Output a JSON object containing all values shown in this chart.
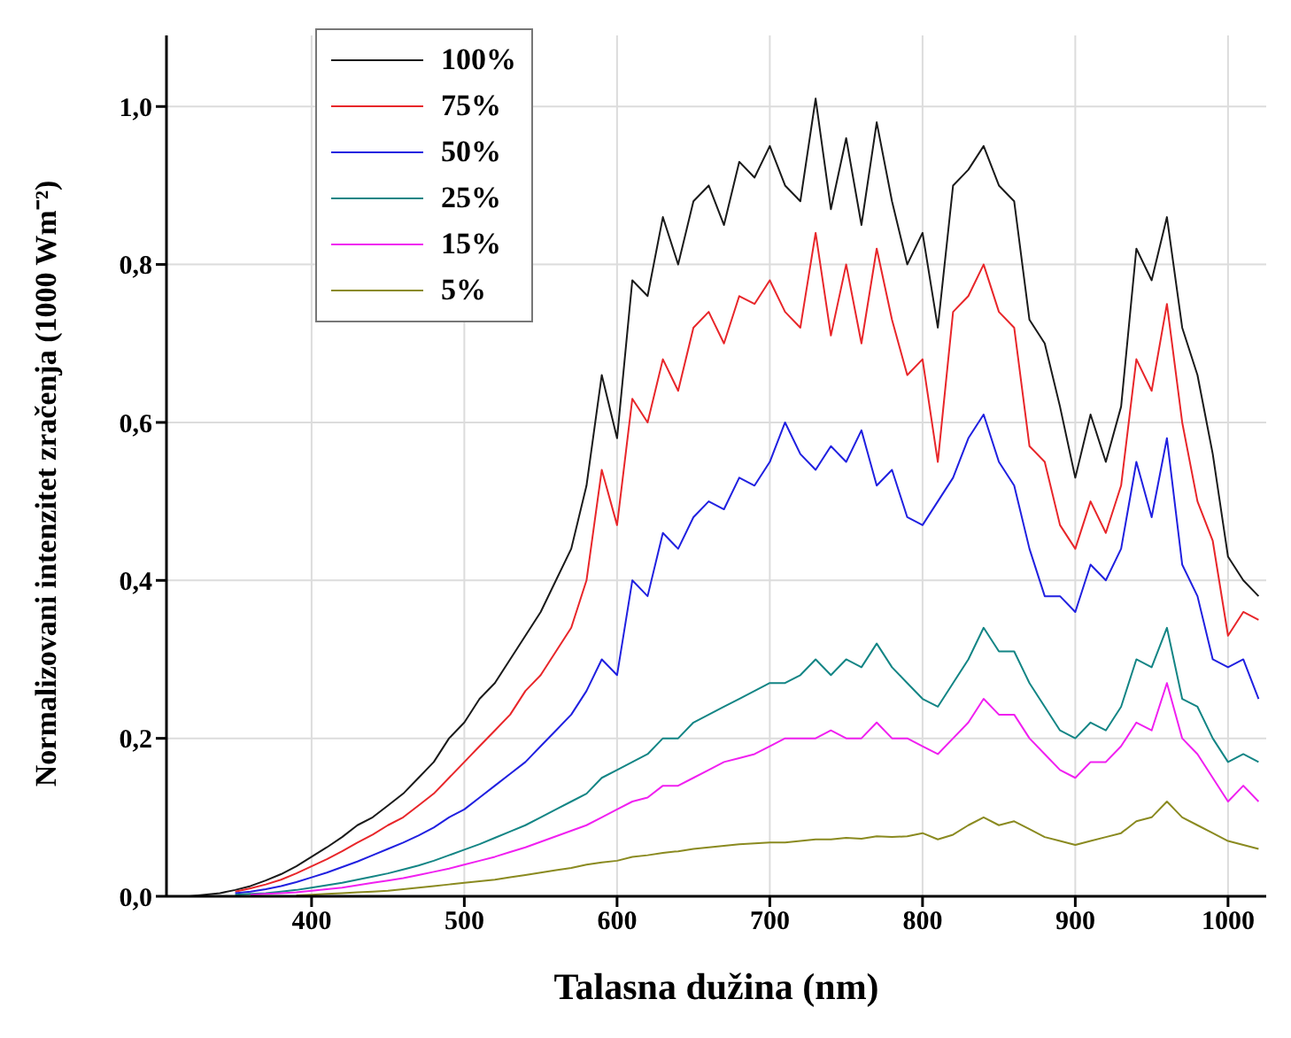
{
  "chart_data": {
    "type": "line",
    "xlabel": "Talasna dužina (nm)",
    "ylabel": "Normalizovani intenzitet zračenja (1000 Wm⁻²)",
    "x": [
      310,
      320,
      330,
      340,
      350,
      360,
      370,
      380,
      390,
      400,
      410,
      420,
      430,
      440,
      450,
      460,
      470,
      480,
      490,
      500,
      510,
      520,
      530,
      540,
      550,
      560,
      570,
      580,
      590,
      600,
      610,
      620,
      630,
      640,
      650,
      660,
      670,
      680,
      690,
      700,
      710,
      720,
      730,
      740,
      750,
      760,
      770,
      780,
      790,
      800,
      810,
      820,
      830,
      840,
      850,
      860,
      870,
      880,
      890,
      900,
      910,
      920,
      930,
      940,
      950,
      960,
      970,
      980,
      990,
      1000,
      1010,
      1020
    ],
    "series": [
      {
        "name": "100%",
        "color": "#1a1a1a",
        "values": [
          0,
          0,
          0.002,
          0.004,
          0.008,
          0.013,
          0.02,
          0.028,
          0.038,
          0.05,
          0.062,
          0.075,
          0.09,
          0.1,
          0.115,
          0.13,
          0.15,
          0.17,
          0.2,
          0.22,
          0.25,
          0.27,
          0.3,
          0.33,
          0.36,
          0.4,
          0.44,
          0.52,
          0.66,
          0.58,
          0.78,
          0.76,
          0.86,
          0.8,
          0.88,
          0.9,
          0.85,
          0.93,
          0.91,
          0.95,
          0.9,
          0.88,
          1.01,
          0.87,
          0.96,
          0.85,
          0.98,
          0.88,
          0.8,
          0.84,
          0.72,
          0.9,
          0.92,
          0.95,
          0.9,
          0.88,
          0.73,
          0.7,
          0.62,
          0.53,
          0.61,
          0.55,
          0.62,
          0.82,
          0.78,
          0.86,
          0.72,
          0.66,
          0.56,
          0.43,
          0.4,
          0.38
        ]
      },
      {
        "name": "75%",
        "color": "#e8262a",
        "values": [
          null,
          null,
          null,
          null,
          0.006,
          0.01,
          0.015,
          0.021,
          0.029,
          0.038,
          0.047,
          0.057,
          0.068,
          0.078,
          0.09,
          0.1,
          0.115,
          0.13,
          0.15,
          0.17,
          0.19,
          0.21,
          0.23,
          0.26,
          0.28,
          0.31,
          0.34,
          0.4,
          0.54,
          0.47,
          0.63,
          0.6,
          0.68,
          0.64,
          0.72,
          0.74,
          0.7,
          0.76,
          0.75,
          0.78,
          0.74,
          0.72,
          0.84,
          0.71,
          0.8,
          0.7,
          0.82,
          0.73,
          0.66,
          0.68,
          0.55,
          0.74,
          0.76,
          0.8,
          0.74,
          0.72,
          0.57,
          0.55,
          0.47,
          0.44,
          0.5,
          0.46,
          0.52,
          0.68,
          0.64,
          0.75,
          0.6,
          0.5,
          0.45,
          0.33,
          0.36,
          0.35
        ]
      },
      {
        "name": "50%",
        "color": "#2020e0",
        "values": [
          null,
          null,
          null,
          null,
          0.004,
          0.006,
          0.009,
          0.013,
          0.018,
          0.024,
          0.03,
          0.037,
          0.044,
          0.052,
          0.06,
          0.068,
          0.077,
          0.087,
          0.1,
          0.11,
          0.125,
          0.14,
          0.155,
          0.17,
          0.19,
          0.21,
          0.23,
          0.26,
          0.3,
          0.28,
          0.4,
          0.38,
          0.46,
          0.44,
          0.48,
          0.5,
          0.49,
          0.53,
          0.52,
          0.55,
          0.6,
          0.56,
          0.54,
          0.57,
          0.55,
          0.59,
          0.52,
          0.54,
          0.48,
          0.47,
          0.5,
          0.53,
          0.58,
          0.61,
          0.55,
          0.52,
          0.44,
          0.38,
          0.38,
          0.36,
          0.42,
          0.4,
          0.44,
          0.55,
          0.48,
          0.58,
          0.42,
          0.38,
          0.3,
          0.29,
          0.3,
          0.25
        ]
      },
      {
        "name": "25%",
        "color": "#138585",
        "values": [
          null,
          null,
          null,
          null,
          0.002,
          0.003,
          0.004,
          0.006,
          0.008,
          0.011,
          0.014,
          0.017,
          0.021,
          0.025,
          0.029,
          0.034,
          0.039,
          0.045,
          0.052,
          0.059,
          0.066,
          0.074,
          0.082,
          0.09,
          0.1,
          0.11,
          0.12,
          0.13,
          0.15,
          0.16,
          0.17,
          0.18,
          0.2,
          0.2,
          0.22,
          0.23,
          0.24,
          0.25,
          0.26,
          0.27,
          0.27,
          0.28,
          0.3,
          0.28,
          0.3,
          0.29,
          0.32,
          0.29,
          0.27,
          0.25,
          0.24,
          0.27,
          0.3,
          0.34,
          0.31,
          0.31,
          0.27,
          0.24,
          0.21,
          0.2,
          0.22,
          0.21,
          0.24,
          0.3,
          0.29,
          0.34,
          0.25,
          0.24,
          0.2,
          0.17,
          0.18,
          0.17
        ]
      },
      {
        "name": "15%",
        "color": "#f020f0",
        "values": [
          null,
          null,
          null,
          null,
          null,
          0.002,
          0.003,
          0.004,
          0.005,
          0.007,
          0.009,
          0.011,
          0.014,
          0.017,
          0.02,
          0.023,
          0.027,
          0.031,
          0.035,
          0.04,
          0.045,
          0.05,
          0.056,
          0.062,
          0.069,
          0.076,
          0.083,
          0.09,
          0.1,
          0.11,
          0.12,
          0.125,
          0.14,
          0.14,
          0.15,
          0.16,
          0.17,
          0.175,
          0.18,
          0.19,
          0.2,
          0.2,
          0.2,
          0.21,
          0.2,
          0.2,
          0.22,
          0.2,
          0.2,
          0.19,
          0.18,
          0.2,
          0.22,
          0.25,
          0.23,
          0.23,
          0.2,
          0.18,
          0.16,
          0.15,
          0.17,
          0.17,
          0.19,
          0.22,
          0.21,
          0.27,
          0.2,
          0.18,
          0.15,
          0.12,
          0.14,
          0.12
        ]
      },
      {
        "name": "5%",
        "color": "#8a8a20",
        "values": [
          null,
          null,
          null,
          null,
          null,
          null,
          null,
          null,
          0.001,
          0.002,
          0.003,
          0.004,
          0.005,
          0.006,
          0.007,
          0.009,
          0.011,
          0.013,
          0.015,
          0.017,
          0.019,
          0.021,
          0.024,
          0.027,
          0.03,
          0.033,
          0.036,
          0.04,
          0.043,
          0.045,
          0.05,
          0.052,
          0.055,
          0.057,
          0.06,
          0.062,
          0.064,
          0.066,
          0.067,
          0.068,
          0.068,
          0.07,
          0.072,
          0.072,
          0.074,
          0.073,
          0.076,
          0.075,
          0.076,
          0.08,
          0.072,
          0.078,
          0.09,
          0.1,
          0.09,
          0.095,
          0.085,
          0.075,
          0.07,
          0.065,
          0.07,
          0.075,
          0.08,
          0.095,
          0.1,
          0.12,
          0.1,
          0.09,
          0.08,
          0.07,
          0.065,
          0.06
        ]
      }
    ],
    "xlim": [
      305,
      1025
    ],
    "xticks": [
      400,
      500,
      600,
      700,
      800,
      900,
      1000
    ],
    "ylim": [
      0,
      1.09
    ],
    "yticks": [
      {
        "value": 0,
        "label": "0,0"
      },
      {
        "value": 0.2,
        "label": "0,2"
      },
      {
        "value": 0.4,
        "label": "0,4"
      },
      {
        "value": 0.6,
        "label": "0,6"
      },
      {
        "value": 0.8,
        "label": "0,8"
      },
      {
        "value": 1,
        "label": "1,0"
      }
    ],
    "grid": true,
    "legend": "top left",
    "marker": "none",
    "line_style": "solid"
  }
}
